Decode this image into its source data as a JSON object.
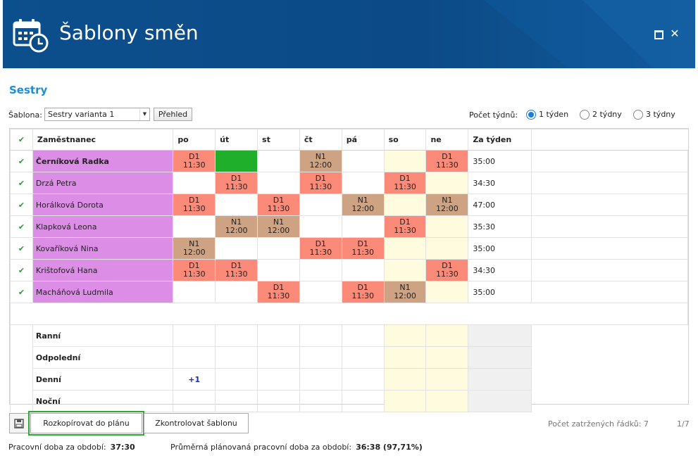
{
  "window": {
    "title": "Šablony směn",
    "icon": "calendar-clock-icon",
    "max_icon": "maximize-icon",
    "close_icon": "close-icon",
    "close_glyph": "✕"
  },
  "section_title": "Sestry",
  "template": {
    "label": "Šablona:",
    "selected": "Sestry varianta 1",
    "overview_label": "Přehled"
  },
  "weeks": {
    "label": "Počet týdnů:",
    "options": [
      "1 týden",
      "2 týdny",
      "3 týdny"
    ],
    "selected_index": 0
  },
  "table": {
    "headers": {
      "employee": "Zaměstnanec",
      "days": [
        "po",
        "út",
        "st",
        "čt",
        "pá",
        "so",
        "ne"
      ],
      "week_total": "Za týden"
    },
    "rows": [
      {
        "name": "Černíková Radka",
        "bold": true,
        "total": "35:00",
        "cells": [
          {
            "code": "D1",
            "time": "11:30"
          },
          {
            "code": "",
            "time": "",
            "green": true
          },
          {
            "code": "",
            "time": ""
          },
          {
            "code": "N1",
            "time": "12:00"
          },
          {
            "code": "",
            "time": ""
          },
          {
            "code": "",
            "time": ""
          },
          {
            "code": "D1",
            "time": "11:30"
          }
        ]
      },
      {
        "name": "Drzá Petra",
        "bold": false,
        "total": "34:30",
        "cells": [
          {
            "code": "",
            "time": ""
          },
          {
            "code": "D1",
            "time": "11:30"
          },
          {
            "code": "",
            "time": ""
          },
          {
            "code": "D1",
            "time": "11:30"
          },
          {
            "code": "",
            "time": ""
          },
          {
            "code": "D1",
            "time": "11:30"
          },
          {
            "code": "",
            "time": ""
          }
        ]
      },
      {
        "name": "Horálková Dorota",
        "bold": false,
        "total": "47:00",
        "cells": [
          {
            "code": "D1",
            "time": "11:30"
          },
          {
            "code": "",
            "time": ""
          },
          {
            "code": "D1",
            "time": "11:30"
          },
          {
            "code": "",
            "time": ""
          },
          {
            "code": "N1",
            "time": "12:00"
          },
          {
            "code": "",
            "time": ""
          },
          {
            "code": "N1",
            "time": "12:00"
          }
        ]
      },
      {
        "name": "Klapková Leona",
        "bold": false,
        "total": "35:30",
        "cells": [
          {
            "code": "",
            "time": ""
          },
          {
            "code": "N1",
            "time": "12:00"
          },
          {
            "code": "N1",
            "time": "12:00"
          },
          {
            "code": "",
            "time": ""
          },
          {
            "code": "",
            "time": ""
          },
          {
            "code": "D1",
            "time": "11:30"
          },
          {
            "code": "",
            "time": ""
          }
        ]
      },
      {
        "name": "Kovaříková Nina",
        "bold": false,
        "total": "35:00",
        "cells": [
          {
            "code": "N1",
            "time": "12:00"
          },
          {
            "code": "",
            "time": ""
          },
          {
            "code": "",
            "time": ""
          },
          {
            "code": "D1",
            "time": "11:30"
          },
          {
            "code": "D1",
            "time": "11:30"
          },
          {
            "code": "",
            "time": ""
          },
          {
            "code": "",
            "time": ""
          }
        ]
      },
      {
        "name": "Krištofová Hana",
        "bold": false,
        "total": "34:30",
        "cells": [
          {
            "code": "D1",
            "time": "11:30"
          },
          {
            "code": "D1",
            "time": "11:30"
          },
          {
            "code": "",
            "time": ""
          },
          {
            "code": "",
            "time": ""
          },
          {
            "code": "",
            "time": ""
          },
          {
            "code": "",
            "time": ""
          },
          {
            "code": "D1",
            "time": "11:30"
          }
        ]
      },
      {
        "name": "Macháňová Ludmila",
        "bold": false,
        "total": "35:00",
        "cells": [
          {
            "code": "",
            "time": ""
          },
          {
            "code": "",
            "time": ""
          },
          {
            "code": "D1",
            "time": "11:30"
          },
          {
            "code": "",
            "time": ""
          },
          {
            "code": "D1",
            "time": "11:30"
          },
          {
            "code": "N1",
            "time": "12:00"
          },
          {
            "code": "",
            "time": ""
          }
        ]
      }
    ],
    "summary": [
      {
        "label": "Ranní",
        "values": [
          "",
          "",
          "",
          "",
          "",
          "",
          ""
        ]
      },
      {
        "label": "Odpolední",
        "values": [
          "",
          "",
          "",
          "",
          "",
          "",
          ""
        ]
      },
      {
        "label": "Denní",
        "values": [
          "+1",
          "",
          "",
          "",
          "",
          "",
          ""
        ]
      },
      {
        "label": "Noční",
        "values": [
          "",
          "",
          "",
          "",
          "",
          "",
          ""
        ]
      }
    ]
  },
  "actions": {
    "save_icon": "save-icon",
    "copy_label": "Rozkopírovat do plánu",
    "check_label": "Zkontrolovat šablonu",
    "marked_rows": "Počet zatržených řádků: 7",
    "pager": "1/7"
  },
  "footer": {
    "work_label": "Pracovní doba za období:",
    "work_value": "37:30",
    "avg_label": "Průměrná plánovaná pracovní doba za období:",
    "avg_value": "36:38 (97,71%)"
  },
  "colors": {
    "header": "#0a4e8c",
    "day_shift": "#fb8b78",
    "night_shift": "#cda384",
    "employee_bg": "#dc8ee6",
    "weekend_bg": "#fffbde",
    "highlight_green": "#1faf2b",
    "accent": "#1a8fd6"
  }
}
